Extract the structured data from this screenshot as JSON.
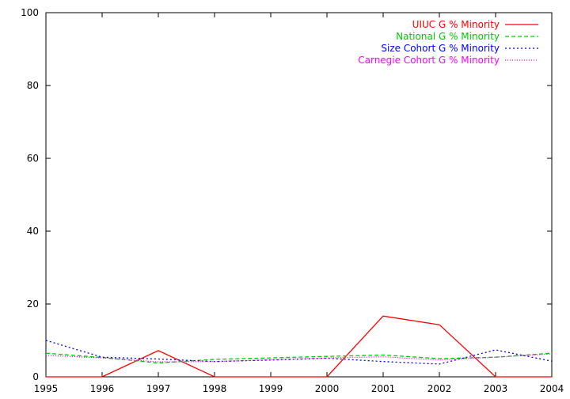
{
  "chart_data": {
    "type": "line",
    "title": "",
    "xlabel": "",
    "ylabel": "",
    "x": [
      1995,
      1996,
      1997,
      1998,
      1999,
      2000,
      2001,
      2002,
      2003,
      2004
    ],
    "xlim": [
      1995,
      2004
    ],
    "ylim": [
      0,
      100
    ],
    "x_ticks": [
      "1995",
      "1996",
      "1997",
      "1998",
      "1999",
      "2000",
      "2001",
      "2002",
      "2003",
      "2004"
    ],
    "y_ticks": [
      "0",
      "20",
      "40",
      "60",
      "80",
      "100"
    ],
    "grid": false,
    "legend_position": "top-right",
    "series": [
      {
        "name": "UIUC G % Minority",
        "color": "#ff0000",
        "dash": "solid",
        "values": [
          0,
          0,
          7.2,
          0,
          0,
          0,
          16.7,
          14.3,
          0,
          0
        ]
      },
      {
        "name": "National G % Minority",
        "color": "#00cc00",
        "dash": "dashed",
        "values": [
          6.5,
          5.3,
          3.8,
          4.8,
          5.2,
          5.6,
          6.0,
          5.0,
          5.4,
          6.5
        ]
      },
      {
        "name": "Size Cohort G % Minority",
        "color": "#0000ff",
        "dash": "dotted",
        "values": [
          10.0,
          5.4,
          4.9,
          4.2,
          4.6,
          5.1,
          4.2,
          3.5,
          7.4,
          4.3
        ]
      },
      {
        "name": "Carnegie Cohort G % Minority",
        "color": "#ff00ff",
        "dash": "fine-dotted",
        "values": [
          5.9,
          5.2,
          4.1,
          4.2,
          4.7,
          5.2,
          5.5,
          4.6,
          5.4,
          6.3
        ]
      }
    ]
  }
}
